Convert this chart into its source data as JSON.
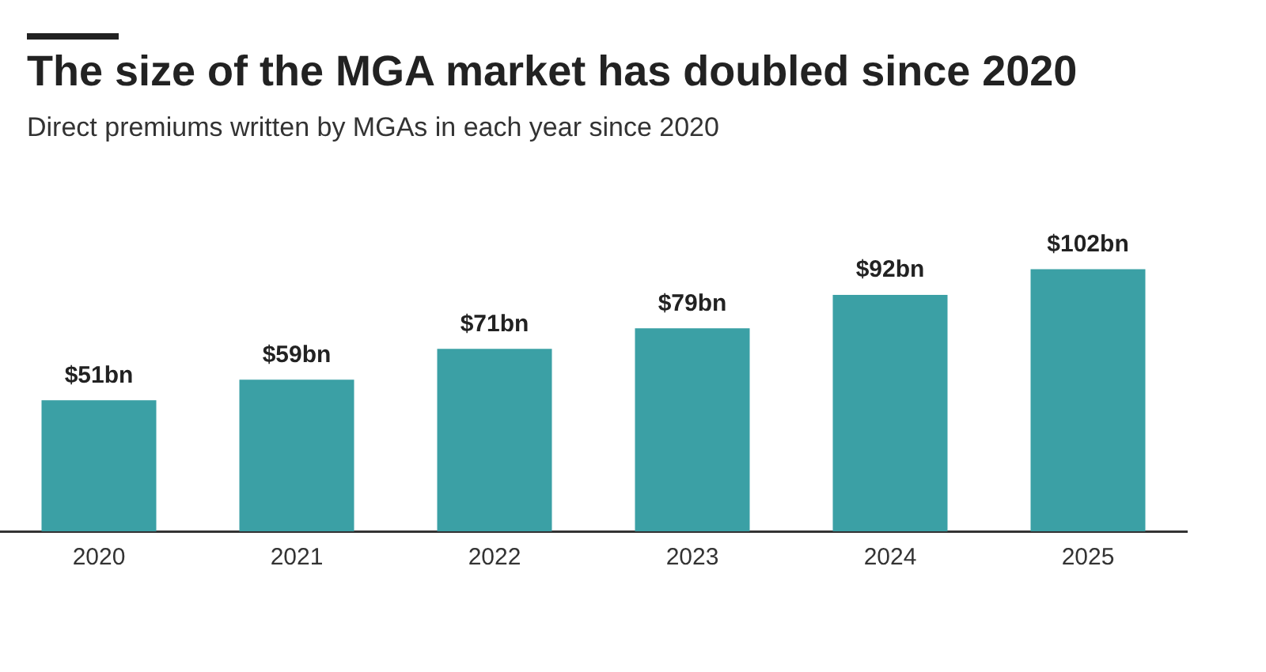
{
  "chart_data": {
    "type": "bar",
    "title": "The size of the MGA market has doubled since 2020",
    "subtitle": "Direct premiums written by MGAs in each year since 2020",
    "categories": [
      "2020",
      "2021",
      "2022",
      "2023",
      "2024",
      "2025"
    ],
    "values": [
      51,
      59,
      71,
      79,
      92,
      102
    ],
    "value_labels": [
      "$51bn",
      "$59bn",
      "$71bn",
      "$79bn",
      "$92bn",
      "$102bn"
    ],
    "color": "#3ba0a5",
    "grid": false,
    "legend": false
  }
}
